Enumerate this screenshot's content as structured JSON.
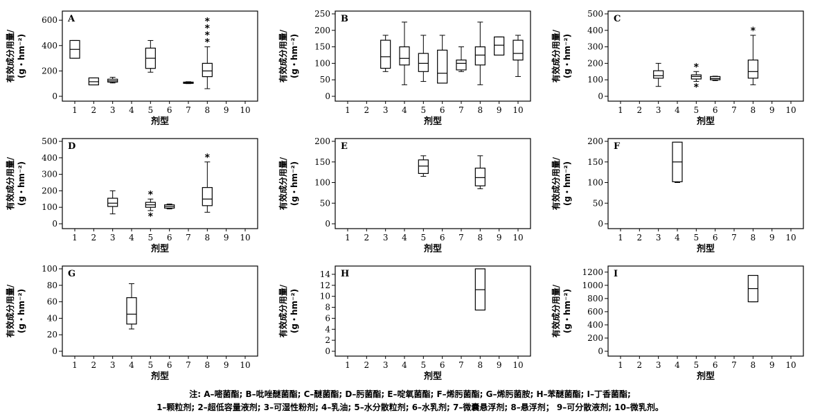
{
  "axis_common": {
    "xlabel": "剂型",
    "ylabel_line1": "有效成分用量/",
    "ylabel_line2": "(g・hm⁻²)",
    "x_ticks": [
      "1",
      "2",
      "3",
      "4",
      "5",
      "6",
      "7",
      "8",
      "9",
      "10"
    ]
  },
  "chart_data": [
    {
      "type": "box",
      "panel": "A",
      "ylim": [
        0,
        650
      ],
      "yticks": [
        0,
        200,
        400,
        600
      ],
      "boxes": [
        {
          "x": 1,
          "whisker_low": 300,
          "q1": 300,
          "median": 370,
          "q3": 440,
          "whisker_high": 440,
          "outliers": 0
        },
        {
          "x": 2,
          "whisker_low": 90,
          "q1": 90,
          "median": 115,
          "q3": 145,
          "whisker_high": 145,
          "outliers": 0
        },
        {
          "x": 3,
          "whisker_low": 105,
          "q1": 112,
          "median": 122,
          "q3": 135,
          "whisker_high": 150,
          "outliers": 0
        },
        {
          "x": 5,
          "whisker_low": 190,
          "q1": 220,
          "median": 300,
          "q3": 380,
          "whisker_high": 440,
          "outliers": 0
        },
        {
          "x": 7,
          "whisker_low": 100,
          "q1": 102,
          "median": 107,
          "q3": 112,
          "whisker_high": 115,
          "outliers": 0
        },
        {
          "x": 8,
          "whisker_low": 60,
          "q1": 155,
          "median": 200,
          "q3": 260,
          "whisker_high": 390,
          "outliers": 4
        }
      ]
    },
    {
      "type": "box",
      "panel": "B",
      "ylim": [
        0,
        250
      ],
      "yticks": [
        0,
        50,
        100,
        150,
        200,
        250
      ],
      "boxes": [
        {
          "x": 3,
          "whisker_low": 75,
          "q1": 85,
          "median": 120,
          "q3": 170,
          "whisker_high": 185,
          "outliers": 0
        },
        {
          "x": 4,
          "whisker_low": 35,
          "q1": 95,
          "median": 115,
          "q3": 150,
          "whisker_high": 225,
          "outliers": 0
        },
        {
          "x": 5,
          "whisker_low": 45,
          "q1": 75,
          "median": 100,
          "q3": 130,
          "whisker_high": 185,
          "outliers": 0
        },
        {
          "x": 6,
          "whisker_low": 40,
          "q1": 40,
          "median": 70,
          "q3": 140,
          "whisker_high": 185,
          "outliers": 0
        },
        {
          "x": 7,
          "whisker_low": 75,
          "q1": 80,
          "median": 100,
          "q3": 110,
          "whisker_high": 150,
          "outliers": 0
        },
        {
          "x": 8,
          "whisker_low": 35,
          "q1": 95,
          "median": 125,
          "q3": 150,
          "whisker_high": 225,
          "outliers": 0
        },
        {
          "x": 9,
          "whisker_low": 125,
          "q1": 125,
          "median": 155,
          "q3": 180,
          "whisker_high": 180,
          "outliers": 0
        },
        {
          "x": 10,
          "whisker_low": 60,
          "q1": 110,
          "median": 130,
          "q3": 170,
          "whisker_high": 185,
          "outliers": 0
        }
      ]
    },
    {
      "type": "box",
      "panel": "C",
      "ylim": [
        0,
        500
      ],
      "yticks": [
        0,
        100,
        200,
        300,
        400,
        500
      ],
      "boxes": [
        {
          "x": 3,
          "whisker_low": 60,
          "q1": 110,
          "median": 125,
          "q3": 155,
          "whisker_high": 200,
          "outliers": 0
        },
        {
          "x": 5,
          "whisker_low": 90,
          "q1": 105,
          "median": 120,
          "q3": 130,
          "whisker_high": 150,
          "outliers": 2
        },
        {
          "x": 6,
          "whisker_low": 95,
          "q1": 100,
          "median": 108,
          "q3": 120,
          "whisker_high": 122,
          "outliers": 0
        },
        {
          "x": 8,
          "whisker_low": 70,
          "q1": 110,
          "median": 150,
          "q3": 220,
          "whisker_high": 370,
          "outliers": 1
        }
      ]
    },
    {
      "type": "box",
      "panel": "D",
      "ylim": [
        0,
        500
      ],
      "yticks": [
        0,
        100,
        200,
        300,
        400,
        500
      ],
      "boxes": [
        {
          "x": 3,
          "whisker_low": 60,
          "q1": 105,
          "median": 125,
          "q3": 155,
          "whisker_high": 200,
          "outliers": 0
        },
        {
          "x": 5,
          "whisker_low": 80,
          "q1": 100,
          "median": 115,
          "q3": 130,
          "whisker_high": 150,
          "outliers": 2
        },
        {
          "x": 6,
          "whisker_low": 90,
          "q1": 95,
          "median": 105,
          "q3": 115,
          "whisker_high": 120,
          "outliers": 0
        },
        {
          "x": 8,
          "whisker_low": 70,
          "q1": 110,
          "median": 150,
          "q3": 220,
          "whisker_high": 375,
          "outliers": 1
        }
      ]
    },
    {
      "type": "box",
      "panel": "E",
      "ylim": [
        0,
        200
      ],
      "yticks": [
        0,
        50,
        100,
        150,
        200
      ],
      "boxes": [
        {
          "x": 5,
          "whisker_low": 115,
          "q1": 122,
          "median": 140,
          "q3": 155,
          "whisker_high": 165,
          "outliers": 0
        },
        {
          "x": 8,
          "whisker_low": 85,
          "q1": 92,
          "median": 112,
          "q3": 135,
          "whisker_high": 165,
          "outliers": 0
        }
      ]
    },
    {
      "type": "box",
      "panel": "F",
      "ylim": [
        0,
        200
      ],
      "yticks": [
        0,
        50,
        100,
        150,
        200
      ],
      "boxes": [
        {
          "x": 4,
          "whisker_low": 100,
          "q1": 102,
          "median": 150,
          "q3": 198,
          "whisker_high": 198,
          "outliers": 0
        }
      ]
    },
    {
      "type": "box",
      "panel": "G",
      "ylim": [
        0,
        100
      ],
      "yticks": [
        0,
        20,
        40,
        60,
        80,
        100
      ],
      "boxes": [
        {
          "x": 4,
          "whisker_low": 27,
          "q1": 33,
          "median": 45,
          "q3": 65,
          "whisker_high": 82,
          "outliers": 0
        }
      ]
    },
    {
      "type": "box",
      "panel": "H",
      "ylim": [
        0,
        15
      ],
      "yticks": [
        0,
        2,
        4,
        6,
        8,
        10,
        12,
        14
      ],
      "boxes": [
        {
          "x": 8,
          "whisker_low": 7.5,
          "q1": 7.5,
          "median": 11.2,
          "q3": 15,
          "whisker_high": 15,
          "outliers": 0
        }
      ]
    },
    {
      "type": "box",
      "panel": "I",
      "ylim": [
        0,
        1250
      ],
      "yticks": [
        0,
        200,
        400,
        600,
        800,
        1000,
        1200
      ],
      "boxes": [
        {
          "x": 8,
          "whisker_low": 750,
          "q1": 750,
          "median": 950,
          "q3": 1150,
          "whisker_high": 1150,
          "outliers": 0
        }
      ]
    }
  ],
  "note": {
    "line1": "注: A–嘧菌酯; B–吡唑醚菌酯; C–醚菌酯; D–肟菌酯; E–啶氧菌酯; F–烯肟菌酯; G–烯肟菌胺; H–苯醚菌酯; I–丁香菌酯;",
    "line2": "1–颗粒剂; 2–超低容量液剂; 3–可湿性粉剂; 4–乳油; 5–水分散粒剂; 6–水乳剂; 7–微囊悬浮剂; 8–悬浮剂； 9–可分散液剂; 10–微乳剂。"
  }
}
